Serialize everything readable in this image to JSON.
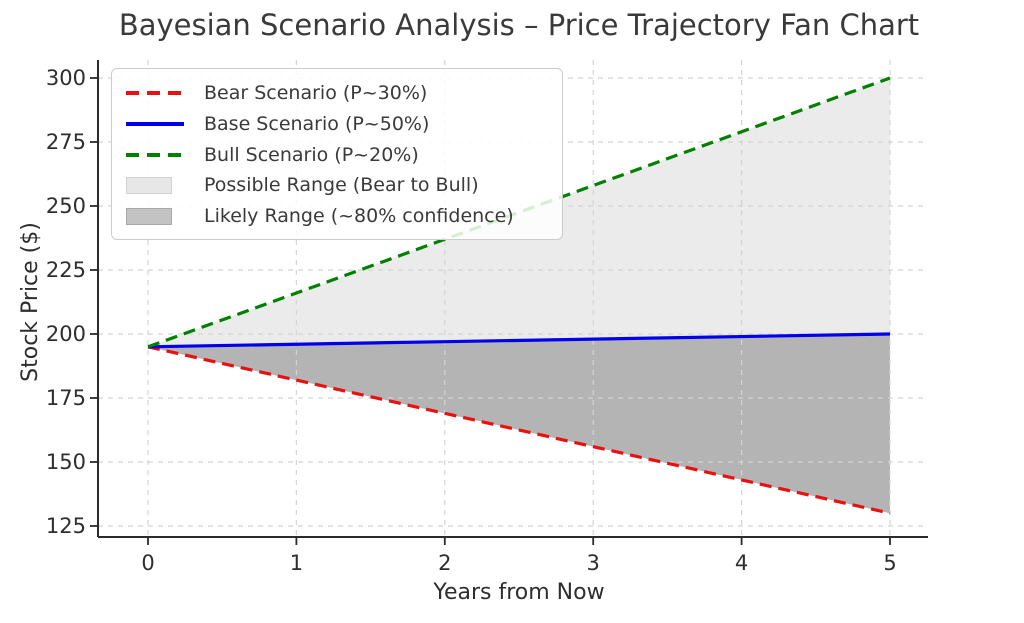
{
  "figure": {
    "title": "Bayesian Scenario Analysis – Price Trajectory Fan Chart"
  },
  "chart_data": {
    "type": "line",
    "title": "Bayesian Scenario Analysis – Price Trajectory Fan Chart",
    "xlabel": "Years from Now",
    "ylabel": "Stock Price ($)",
    "x": [
      0,
      1,
      2,
      3,
      4,
      5
    ],
    "xticks": [
      0,
      1,
      2,
      3,
      4,
      5
    ],
    "yticks": [
      125,
      150,
      175,
      200,
      225,
      250,
      275,
      300
    ],
    "xlim": [
      -0.34,
      5.26
    ],
    "ylim": [
      121,
      307
    ],
    "grid": true,
    "grid_style": "dashed",
    "legend_position": "upper left",
    "start_price": 195,
    "series": [
      {
        "name": "Bear Scenario (P~30%)",
        "color": "#e81010",
        "style": "dashed",
        "values": [
          195,
          182,
          169,
          156,
          143,
          130
        ]
      },
      {
        "name": "Base Scenario (P~50%)",
        "color": "#0000ee",
        "style": "solid",
        "values": [
          195,
          196,
          197,
          198,
          199,
          200
        ]
      },
      {
        "name": "Bull Scenario (P~20%)",
        "color": "#008000",
        "style": "dashed",
        "values": [
          195,
          216,
          237,
          258,
          279,
          300
        ]
      }
    ],
    "bands": [
      {
        "name": "Possible Range (Bear to Bull)",
        "upper": 2,
        "lower": 0,
        "color": "#ebebeb"
      },
      {
        "name": "Likely Range (~80% confidence)",
        "upper": 1,
        "lower": 0,
        "color": "#b4b4b4"
      }
    ],
    "legend": [
      {
        "label": "Bear Scenario (P~30%)",
        "swatch": "dashed-line",
        "color": "#e81010",
        "border": ""
      },
      {
        "label": "Base Scenario (P~50%)",
        "swatch": "solid-line",
        "color": "#0000ee",
        "border": ""
      },
      {
        "label": "Bull Scenario (P~20%)",
        "swatch": "dashed-line",
        "color": "#008000",
        "border": ""
      },
      {
        "label": "Possible Range (Bear to Bull)",
        "swatch": "patch",
        "color": "#e7e7e7",
        "border": "#d2d2d2"
      },
      {
        "label": "Likely Range (~80% confidence)",
        "swatch": "patch",
        "color": "#c3c3c3",
        "border": "#a9a9a9"
      }
    ]
  }
}
